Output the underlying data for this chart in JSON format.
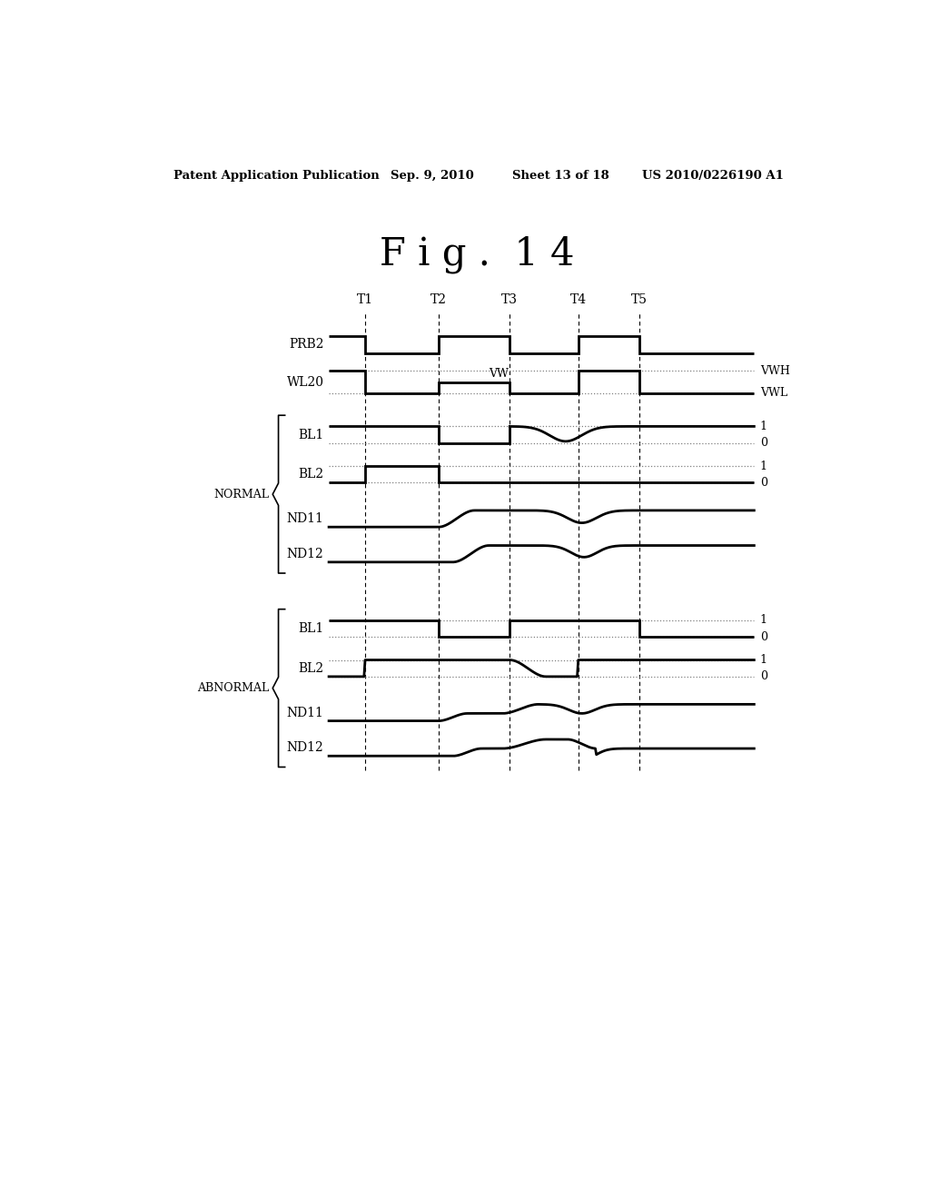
{
  "title": "F i g .  1 4",
  "patent_header": "Patent Application Publication",
  "patent_date": "Sep. 9, 2010",
  "patent_sheet": "Sheet 13 of 18",
  "patent_number": "US 2010/0226190 A1",
  "background_color": "#ffffff",
  "time_labels": [
    "T1",
    "T2",
    "T3",
    "T4",
    "T5"
  ],
  "vw_label": "VW",
  "right_labels_wl": [
    "VWH",
    "VWL"
  ],
  "group_labels": [
    "NORMAL",
    "ABNORMAL"
  ]
}
